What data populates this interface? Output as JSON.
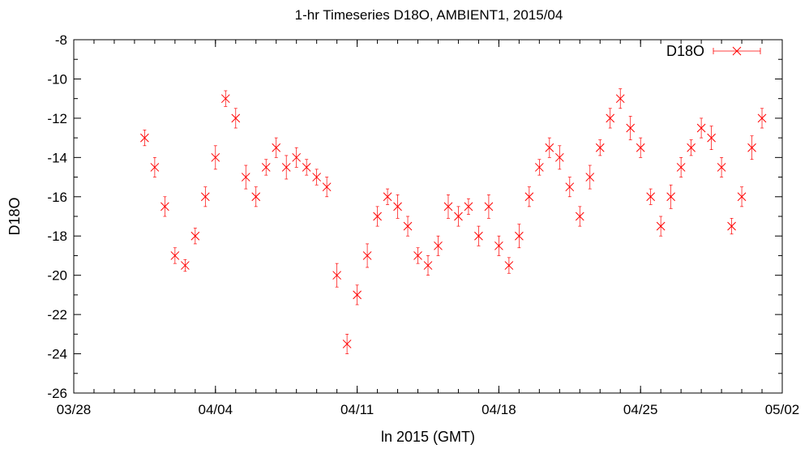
{
  "chart_data": {
    "type": "scatter",
    "title": "1-hr Timeseries D18O, AMBIENT1, 2015/04",
    "xlabel": "ln 2015 (GMT)",
    "ylabel": "D18O",
    "xlim": [
      "2015-03-28",
      "2015-05-02"
    ],
    "ylim": [
      -26,
      -8
    ],
    "x_ticks": [
      "03/28",
      "04/04",
      "04/11",
      "04/18",
      "04/25",
      "05/02"
    ],
    "y_ticks": [
      -8,
      -10,
      -12,
      -14,
      -16,
      -18,
      -20,
      -22,
      -24,
      -26
    ],
    "grid": false,
    "legend_position": "top-right",
    "colors": {
      "series": "#ff0000",
      "axes": "#000000"
    },
    "series": [
      {
        "name": "D18O",
        "marker": "x",
        "error_bars": true,
        "x": [
          "2015-03-31 12:00",
          "2015-04-01 00:00",
          "2015-04-01 12:00",
          "2015-04-02 00:00",
          "2015-04-02 12:00",
          "2015-04-03 00:00",
          "2015-04-03 12:00",
          "2015-04-04 00:00",
          "2015-04-04 12:00",
          "2015-04-05 00:00",
          "2015-04-05 12:00",
          "2015-04-06 00:00",
          "2015-04-06 12:00",
          "2015-04-07 00:00",
          "2015-04-07 12:00",
          "2015-04-08 00:00",
          "2015-04-08 12:00",
          "2015-04-09 00:00",
          "2015-04-09 12:00",
          "2015-04-10 00:00",
          "2015-04-10 12:00",
          "2015-04-11 00:00",
          "2015-04-11 12:00",
          "2015-04-12 00:00",
          "2015-04-12 12:00",
          "2015-04-13 00:00",
          "2015-04-13 12:00",
          "2015-04-14 00:00",
          "2015-04-14 12:00",
          "2015-04-15 00:00",
          "2015-04-15 12:00",
          "2015-04-16 00:00",
          "2015-04-16 12:00",
          "2015-04-17 00:00",
          "2015-04-17 12:00",
          "2015-04-18 00:00",
          "2015-04-18 12:00",
          "2015-04-19 00:00",
          "2015-04-19 12:00",
          "2015-04-20 00:00",
          "2015-04-20 12:00",
          "2015-04-21 00:00",
          "2015-04-21 12:00",
          "2015-04-22 00:00",
          "2015-04-22 12:00",
          "2015-04-23 00:00",
          "2015-04-23 12:00",
          "2015-04-24 00:00",
          "2015-04-24 12:00",
          "2015-04-25 00:00",
          "2015-04-25 12:00",
          "2015-04-26 00:00",
          "2015-04-26 12:00",
          "2015-04-27 00:00",
          "2015-04-27 12:00",
          "2015-04-28 00:00",
          "2015-04-28 12:00",
          "2015-04-29 00:00",
          "2015-04-29 12:00",
          "2015-04-30 00:00",
          "2015-04-30 12:00",
          "2015-05-01 00:00"
        ],
        "y": [
          -13.0,
          -14.5,
          -16.5,
          -19.0,
          -19.5,
          -18.0,
          -16.0,
          -14.0,
          -11.0,
          -12.0,
          -15.0,
          -16.0,
          -14.5,
          -13.5,
          -14.5,
          -14.0,
          -14.5,
          -15.0,
          -15.5,
          -20.0,
          -23.5,
          -21.0,
          -19.0,
          -17.0,
          -16.0,
          -16.5,
          -17.5,
          -19.0,
          -19.5,
          -18.5,
          -16.5,
          -17.0,
          -16.5,
          -18.0,
          -16.5,
          -18.5,
          -19.5,
          -18.0,
          -16.0,
          -14.5,
          -13.5,
          -14.0,
          -15.5,
          -17.0,
          -15.0,
          -13.5,
          -12.0,
          -11.0,
          -12.5,
          -13.5,
          -16.0,
          -17.5,
          -16.0,
          -14.5,
          -13.5,
          -12.5,
          -13.0,
          -14.5,
          -17.5,
          -16.0,
          -13.5,
          -12.0
        ],
        "error": [
          0.4,
          0.5,
          0.5,
          0.4,
          0.3,
          0.4,
          0.5,
          0.6,
          0.4,
          0.5,
          0.6,
          0.5,
          0.4,
          0.5,
          0.6,
          0.5,
          0.4,
          0.4,
          0.5,
          0.6,
          0.5,
          0.5,
          0.6,
          0.5,
          0.4,
          0.6,
          0.5,
          0.4,
          0.5,
          0.5,
          0.6,
          0.5,
          0.4,
          0.5,
          0.6,
          0.5,
          0.4,
          0.6,
          0.5,
          0.4,
          0.5,
          0.6,
          0.5,
          0.5,
          0.6,
          0.4,
          0.5,
          0.5,
          0.6,
          0.5,
          0.4,
          0.5,
          0.6,
          0.5,
          0.4,
          0.5,
          0.6,
          0.5,
          0.4,
          0.5,
          0.6,
          0.5
        ]
      }
    ]
  }
}
